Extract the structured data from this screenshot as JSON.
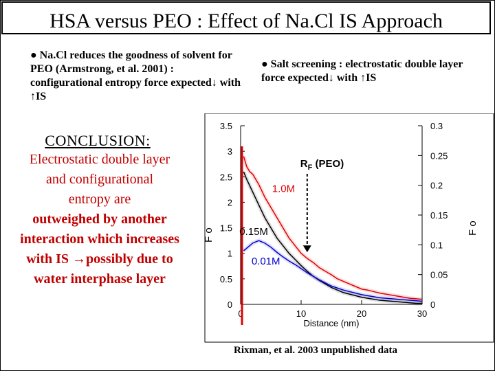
{
  "slide": {
    "title": "HSA versus PEO : Effect of Na.Cl IS Approach",
    "left_bullet": "● Na.Cl reduces the goodness of solvent for PEO (Armstrong, et al. 2001) : configurational entropy force expected↓ with ↑IS",
    "right_bullet": "● Salt screening : electrostatic double layer force expected↓ with ↑IS",
    "conclusion_heading": "CONCLUSION:",
    "conclusion_line1": "Electrostatic double layer  and configurational entropy are",
    "conclusion_line2": "outweighed by another interaction which increases with IS →possibly due to water interphase layer",
    "caption": "Rixman, et al. 2003 unpublished data"
  },
  "chart_data": {
    "type": "line",
    "xlabel": "Distance (nm)",
    "ylabel_left": "F o",
    "ylabel_right": "F o",
    "xlim": [
      0,
      30
    ],
    "ylim_left": [
      0,
      3.5
    ],
    "ylim_right": [
      0,
      0.3
    ],
    "x_ticks": [
      0,
      10,
      20,
      30
    ],
    "y_ticks_left": [
      "0",
      "0.5",
      "1",
      "1.5",
      "2",
      "2.5",
      "3",
      "3.5"
    ],
    "y_ticks_right": [
      "0",
      "0.05",
      "0.1",
      "0.15",
      "0.2",
      "0.25",
      "0.3"
    ],
    "annotation": {
      "label_main": "R",
      "label_sub": "F",
      "label_rest": " (PEO)",
      "x": 11
    },
    "series": [
      {
        "name": "1.0M",
        "color": "#e00000",
        "x": [
          0.5,
          1,
          1.5,
          2,
          2.5,
          3,
          4,
          5,
          6,
          7,
          8,
          9,
          10,
          11,
          12,
          13,
          14,
          15,
          16,
          17,
          18,
          19,
          20,
          21,
          22,
          23,
          24,
          25,
          26,
          27,
          28,
          29,
          30
        ],
        "y": [
          2.9,
          2.7,
          2.6,
          2.55,
          2.45,
          2.35,
          2.1,
          1.9,
          1.7,
          1.5,
          1.3,
          1.15,
          1.0,
          0.9,
          0.82,
          0.72,
          0.65,
          0.58,
          0.5,
          0.45,
          0.4,
          0.35,
          0.3,
          0.28,
          0.25,
          0.22,
          0.2,
          0.18,
          0.16,
          0.14,
          0.12,
          0.11,
          0.1
        ]
      },
      {
        "name": "0.15M",
        "color": "#000000",
        "x": [
          0.5,
          1,
          2,
          3,
          4,
          5,
          6,
          7,
          8,
          9,
          10,
          11,
          12,
          13,
          14,
          15,
          16,
          17,
          18,
          19,
          20,
          21,
          22,
          23,
          24,
          25,
          26,
          27,
          28,
          29,
          30
        ],
        "y": [
          2.6,
          2.45,
          2.2,
          1.95,
          1.7,
          1.5,
          1.3,
          1.15,
          1.0,
          0.88,
          0.76,
          0.65,
          0.55,
          0.47,
          0.4,
          0.33,
          0.28,
          0.23,
          0.2,
          0.17,
          0.14,
          0.12,
          0.1,
          0.08,
          0.07,
          0.06,
          0.05,
          0.04,
          0.03,
          0.02,
          0.02
        ]
      },
      {
        "name": "0.01M",
        "color": "#0000cc",
        "x": [
          0.5,
          1,
          2,
          3,
          4,
          5,
          6,
          7,
          8,
          9,
          10,
          11,
          12,
          13,
          14,
          15,
          16,
          17,
          18,
          19,
          20,
          21,
          22,
          23,
          24,
          25,
          26,
          27,
          28,
          29,
          30
        ],
        "y": [
          1.05,
          1.1,
          1.2,
          1.25,
          1.2,
          1.12,
          1.02,
          0.93,
          0.85,
          0.78,
          0.7,
          0.62,
          0.55,
          0.48,
          0.42,
          0.36,
          0.32,
          0.28,
          0.25,
          0.22,
          0.19,
          0.17,
          0.15,
          0.13,
          0.12,
          0.11,
          0.1,
          0.09,
          0.08,
          0.07,
          0.06
        ]
      }
    ]
  }
}
